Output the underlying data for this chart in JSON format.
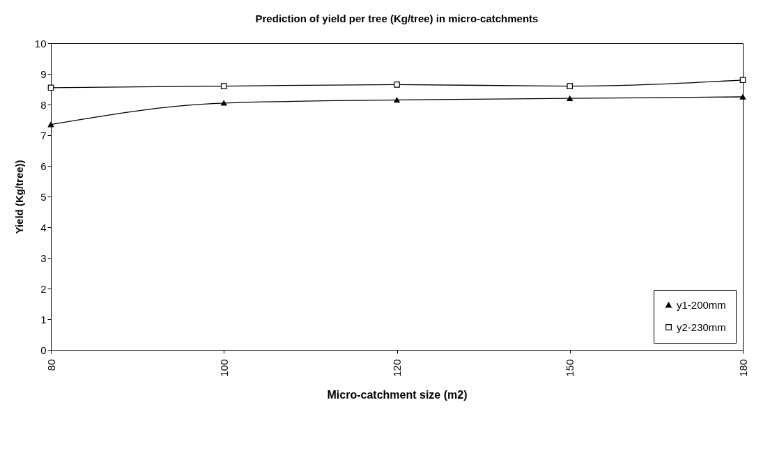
{
  "chart_data": {
    "type": "line",
    "title": "Prediction of yield per tree (Kg/tree) in micro-catchments",
    "xlabel": "Micro-catchment size (m2)",
    "ylabel": "Yield (Kg/tree))",
    "categories": [
      "80",
      "100",
      "120",
      "150",
      "180"
    ],
    "series": [
      {
        "name": "y1-200mm",
        "color": "#000000",
        "marker": "triangle",
        "values": [
          7.35,
          8.05,
          8.15,
          8.2,
          8.25
        ]
      },
      {
        "name": "y2-230mm",
        "color": "#000000",
        "marker": "square",
        "values": [
          8.55,
          8.6,
          8.65,
          8.6,
          8.8
        ]
      }
    ],
    "ylim": [
      0,
      10
    ],
    "yticks": [
      0,
      1,
      2,
      3,
      4,
      5,
      6,
      7,
      8,
      9,
      10
    ],
    "grid": false,
    "legend": "bottom right",
    "line_style": "solid"
  }
}
